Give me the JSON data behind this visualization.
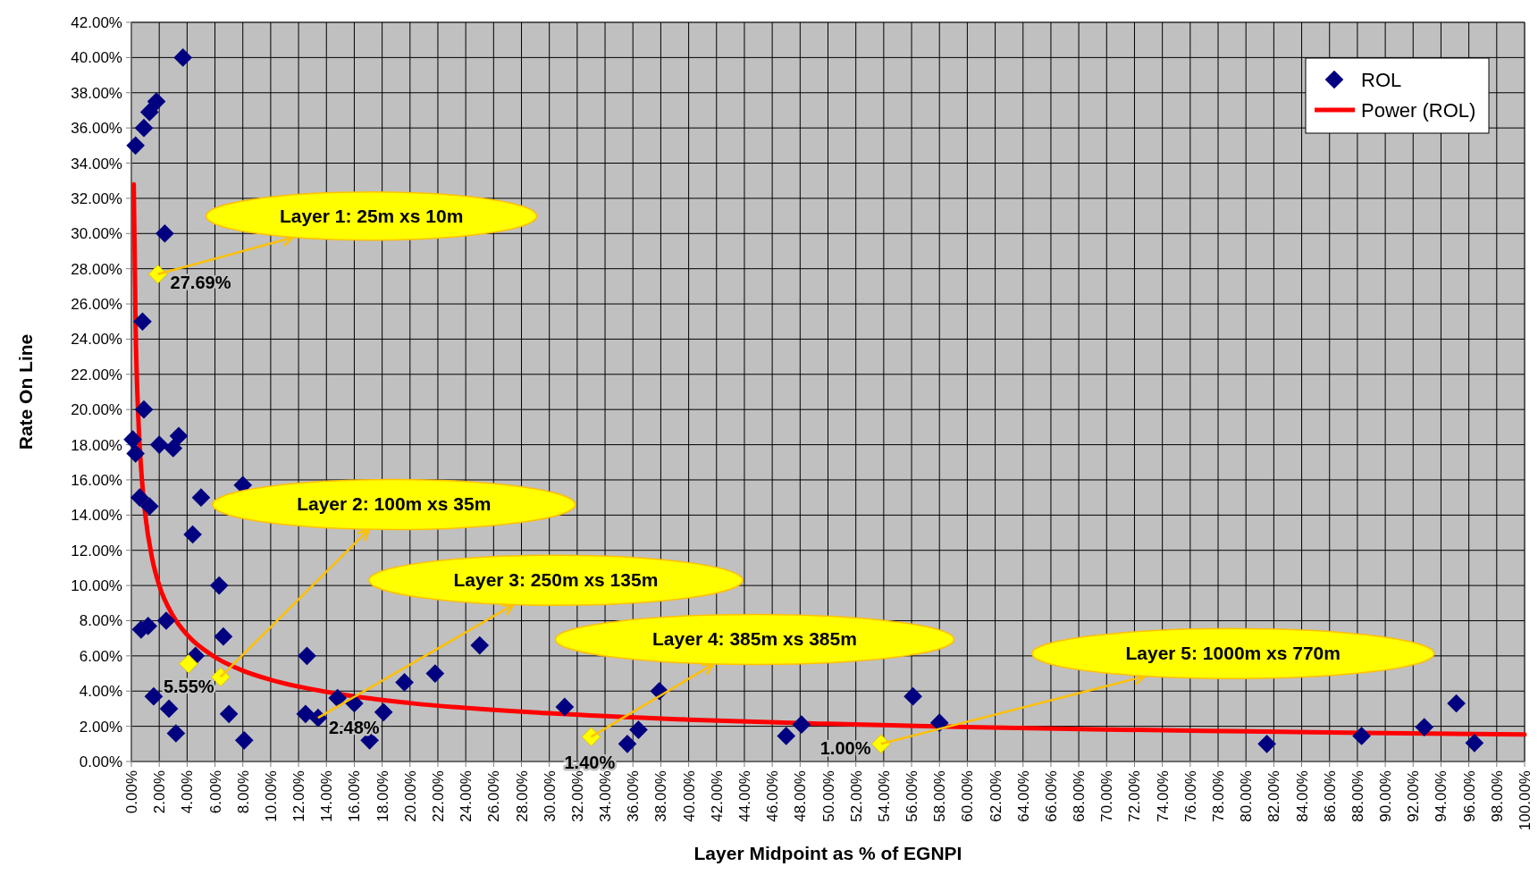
{
  "chart_data": {
    "type": "scatter",
    "xlabel": "Layer Midpoint as % of EGNPI",
    "ylabel": "Rate On Line",
    "xlim": [
      0,
      100
    ],
    "ylim": [
      0,
      42
    ],
    "xticks": [
      {
        "value": 0,
        "label": "0.00%"
      },
      {
        "value": 2,
        "label": "2.00%"
      },
      {
        "value": 4,
        "label": "4.00%"
      },
      {
        "value": 6,
        "label": "6.00%"
      },
      {
        "value": 8,
        "label": "8.00%"
      },
      {
        "value": 10,
        "label": "10.00%"
      },
      {
        "value": 12,
        "label": "12.00%"
      },
      {
        "value": 14,
        "label": "14.00%"
      },
      {
        "value": 16,
        "label": "16.00%"
      },
      {
        "value": 18,
        "label": "18.00%"
      },
      {
        "value": 20,
        "label": "20.00%"
      },
      {
        "value": 22,
        "label": "22.00%"
      },
      {
        "value": 24,
        "label": "24.00%"
      },
      {
        "value": 26,
        "label": "26.00%"
      },
      {
        "value": 28,
        "label": "28.00%"
      },
      {
        "value": 30,
        "label": "30.00%"
      },
      {
        "value": 32,
        "label": "32.00%"
      },
      {
        "value": 34,
        "label": "34.00%"
      },
      {
        "value": 36,
        "label": "36.00%"
      },
      {
        "value": 38,
        "label": "38.00%"
      },
      {
        "value": 40,
        "label": "40.00%"
      },
      {
        "value": 42,
        "label": "42.00%"
      },
      {
        "value": 44,
        "label": "44.00%"
      },
      {
        "value": 46,
        "label": "46.00%"
      },
      {
        "value": 48,
        "label": "48.00%"
      },
      {
        "value": 50,
        "label": "50.00%"
      },
      {
        "value": 52,
        "label": "52.00%"
      },
      {
        "value": 54,
        "label": "54.00%"
      },
      {
        "value": 56,
        "label": "56.00%"
      },
      {
        "value": 58,
        "label": "58.00%"
      },
      {
        "value": 60,
        "label": "60.00%"
      },
      {
        "value": 62,
        "label": "62.00%"
      },
      {
        "value": 64,
        "label": "64.00%"
      },
      {
        "value": 66,
        "label": "66.00%"
      },
      {
        "value": 68,
        "label": "68.00%"
      },
      {
        "value": 70,
        "label": "70.00%"
      },
      {
        "value": 72,
        "label": "72.00%"
      },
      {
        "value": 74,
        "label": "74.00%"
      },
      {
        "value": 76,
        "label": "76.00%"
      },
      {
        "value": 78,
        "label": "78.00%"
      },
      {
        "value": 80,
        "label": "80.00%"
      },
      {
        "value": 82,
        "label": "82.00%"
      },
      {
        "value": 84,
        "label": "84.00%"
      },
      {
        "value": 86,
        "label": "86.00%"
      },
      {
        "value": 88,
        "label": "88.00%"
      },
      {
        "value": 90,
        "label": "90.00%"
      },
      {
        "value": 92,
        "label": "92.00%"
      },
      {
        "value": 94,
        "label": "94.00%"
      },
      {
        "value": 96,
        "label": "96.00%"
      },
      {
        "value": 98,
        "label": "98.00%"
      },
      {
        "value": 100,
        "label": "100.00%"
      }
    ],
    "yticks": [
      {
        "value": 0,
        "label": "0.00%"
      },
      {
        "value": 2,
        "label": "2.00%"
      },
      {
        "value": 4,
        "label": "4.00%"
      },
      {
        "value": 6,
        "label": "6.00%"
      },
      {
        "value": 8,
        "label": "8.00%"
      },
      {
        "value": 10,
        "label": "10.00%"
      },
      {
        "value": 12,
        "label": "12.00%"
      },
      {
        "value": 14,
        "label": "14.00%"
      },
      {
        "value": 16,
        "label": "16.00%"
      },
      {
        "value": 18,
        "label": "18.00%"
      },
      {
        "value": 20,
        "label": "20.00%"
      },
      {
        "value": 22,
        "label": "22.00%"
      },
      {
        "value": 24,
        "label": "24.00%"
      },
      {
        "value": 26,
        "label": "26.00%"
      },
      {
        "value": 28,
        "label": "28.00%"
      },
      {
        "value": 30,
        "label": "30.00%"
      },
      {
        "value": 32,
        "label": "32.00%"
      },
      {
        "value": 34,
        "label": "34.00%"
      },
      {
        "value": 36,
        "label": "36.00%"
      },
      {
        "value": 38,
        "label": "38.00%"
      },
      {
        "value": 40,
        "label": "40.00%"
      },
      {
        "value": 42,
        "label": "42.00%"
      }
    ],
    "grid": true,
    "legend": "top right",
    "series": [
      {
        "name": "ROL",
        "marker": "diamond",
        "color": "#000080",
        "x": [
          0.3,
          0.9,
          1.3,
          1.8,
          3.7,
          2.4,
          0.8,
          0.9,
          0.1,
          0.3,
          2.0,
          3.0,
          3.4,
          0.6,
          1.3,
          8.0,
          5.0,
          4.4,
          6.3,
          0.7,
          1.2,
          2.5,
          6.6,
          4.6,
          1.6,
          2.7,
          3.2,
          7.0,
          8.1,
          12.6,
          12.5,
          13.4,
          14.8,
          16.0,
          17.1,
          18.1,
          19.6,
          21.8,
          25.0,
          31.1,
          35.6,
          36.4,
          37.9,
          47.0,
          48.1,
          56.1,
          58.0,
          81.5,
          88.3,
          92.8,
          95.1,
          96.4
        ],
        "values": [
          35.0,
          36.0,
          36.9,
          37.5,
          40.0,
          30.0,
          25.0,
          20.0,
          18.3,
          17.5,
          18.0,
          17.8,
          18.5,
          15.0,
          14.5,
          15.7,
          15.0,
          12.9,
          10.0,
          7.5,
          7.7,
          8.0,
          7.1,
          6.0,
          3.7,
          3.0,
          1.6,
          2.7,
          1.2,
          6.0,
          2.7,
          2.48,
          3.6,
          3.3,
          1.2,
          2.8,
          4.5,
          5.0,
          6.6,
          3.1,
          1.0,
          1.8,
          4.0,
          1.45,
          2.1,
          3.7,
          2.2,
          1.0,
          1.45,
          1.95,
          3.3,
          1.05
        ]
      },
      {
        "marker": "diamond",
        "color": "#ffff00",
        "x": [
          1.9,
          4.1,
          6.4,
          33.0,
          53.8
        ],
        "values": [
          27.69,
          5.55,
          4.8,
          1.4,
          1.0
        ],
        "value_labels": [
          "27.69%",
          "5.55%",
          null,
          "1.40%",
          "1.00%"
        ]
      },
      {
        "name": "Power (ROL)",
        "type": "line",
        "color": "#ff0000",
        "x": [
          0.17,
          0.3,
          0.5,
          0.75,
          1,
          1.5,
          2,
          3,
          4,
          6,
          8,
          10,
          15,
          20,
          30,
          40,
          50,
          60,
          70,
          80,
          90,
          100
        ],
        "values": [
          32.8,
          24.9,
          19.5,
          16.1,
          14.0,
          11.5,
          10.0,
          8.27,
          7.2,
          5.93,
          5.16,
          4.64,
          3.82,
          3.32,
          2.74,
          2.38,
          2.14,
          1.96,
          1.82,
          1.71,
          1.61,
          1.53
        ]
      }
    ],
    "annotations": [
      {
        "text": "Layer 1: 25m xs 10m",
        "x": 1.9,
        "y": 27.69
      },
      {
        "text": "Layer 2: 100m xs 35m",
        "x": 6.4,
        "y": 4.8
      },
      {
        "text": "Layer 3: 250m xs 135m",
        "x": 13.4,
        "y": 2.48
      },
      {
        "text": "Layer 4: 385m xs 385m",
        "x": 33.0,
        "y": 1.4
      },
      {
        "text": "Layer 5: 1000m xs 770m",
        "x": 53.8,
        "y": 1.0
      },
      {
        "text": "2.48%",
        "x": 13.4,
        "y": 2.48
      }
    ]
  }
}
